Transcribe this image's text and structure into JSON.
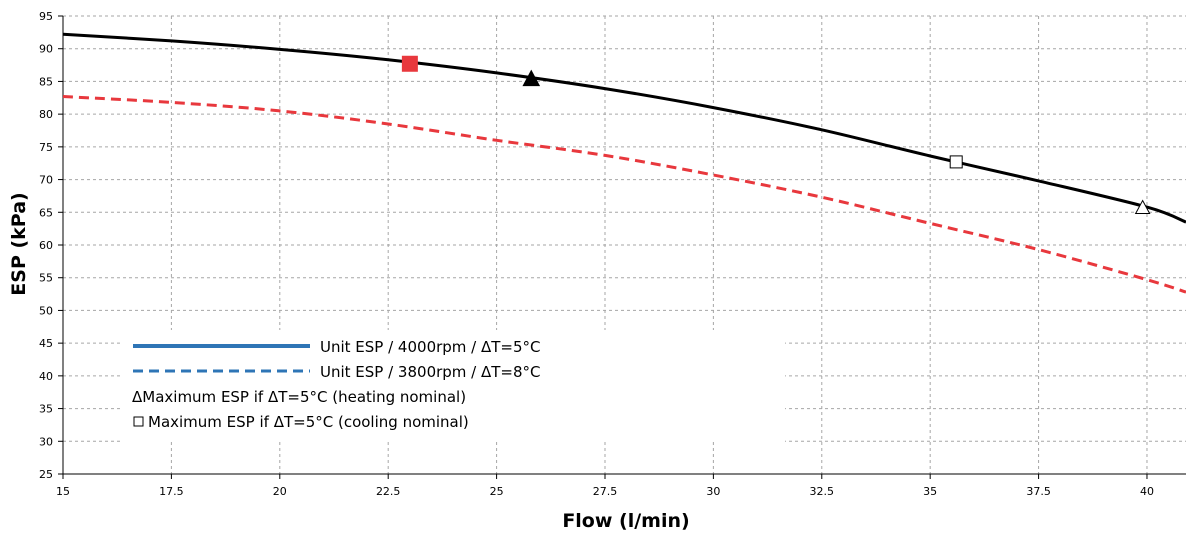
{
  "chart_data": {
    "type": "line",
    "xlabel": "Flow (l/min)",
    "ylabel": "ESP (kPa)",
    "xlim": [
      15,
      40.9
    ],
    "ylim": [
      25,
      95
    ],
    "x_ticks": [
      "15",
      "17.5",
      "20",
      "22.5",
      "25",
      "27.5",
      "30",
      "32.5",
      "35",
      "37.5",
      "40"
    ],
    "y_ticks": [
      "25",
      "30",
      "35",
      "40",
      "45",
      "50",
      "55",
      "60",
      "65",
      "70",
      "75",
      "80",
      "85",
      "90",
      "95"
    ],
    "grid": true,
    "legend_position": "lower-left",
    "series": [
      {
        "name": "Unit ESP / 4000rpm / ΔT=5°C",
        "style": "solid",
        "color": "#000000",
        "legend_color": "#2e75b6",
        "x": [
          15,
          17.5,
          20,
          22.5,
          25,
          27.5,
          30,
          32.5,
          35,
          37.5,
          40,
          40.9
        ],
        "y": [
          92.2,
          91.2,
          89.9,
          88.3,
          86.3,
          83.9,
          81.0,
          77.6,
          73.6,
          69.8,
          65.8,
          63.5
        ]
      },
      {
        "name": "Unit ESP / 3800rpm / ΔT=8°C",
        "style": "dashed",
        "color": "#e8383d",
        "legend_color": "#2e75b6",
        "x": [
          15,
          17.5,
          20,
          22.5,
          25,
          27.5,
          30,
          32.5,
          35,
          37.5,
          40,
          40.9
        ],
        "y": [
          82.7,
          81.8,
          80.5,
          78.5,
          76.0,
          73.7,
          70.7,
          67.3,
          63.3,
          59.3,
          54.7,
          52.8
        ]
      }
    ],
    "markers": [
      {
        "label": "Maximum ESP if ΔT=5°C (heating nominal)",
        "shape": "triangle",
        "filled": false,
        "x": 39.9,
        "y": 65.8
      },
      {
        "label": "Maximum ESP if ΔT=5°C (cooling nominal)",
        "shape": "square",
        "filled": false,
        "x": 35.6,
        "y": 72.7
      },
      {
        "label": "",
        "shape": "triangle",
        "filled": true,
        "color": "#000000",
        "x": 25.8,
        "y": 85.5
      },
      {
        "label": "",
        "shape": "square",
        "filled": true,
        "color": "#e8383d",
        "x": 23.0,
        "y": 87.7
      }
    ],
    "legend": [
      {
        "text": "Unit ESP / 4000rpm / ΔT=5°C",
        "symbol": "solid-line"
      },
      {
        "text": "Unit ESP / 3800rpm / ΔT=8°C",
        "symbol": "dashed-line"
      },
      {
        "text": "ΔMaximum ESP if ΔT=5°C (heating nominal)",
        "symbol": "none"
      },
      {
        "text": "Maximum ESP if ΔT=5°C (cooling nominal)",
        "symbol": "square"
      }
    ]
  }
}
